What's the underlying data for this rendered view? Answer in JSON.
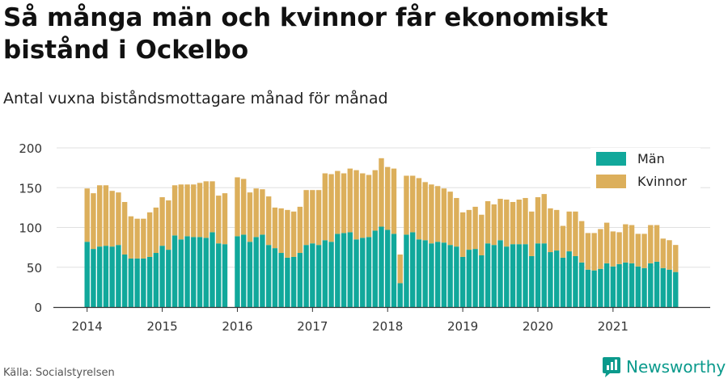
{
  "header": {
    "title": "Så många män och kvinnor får ekonomiskt bistånd i Ockelbo",
    "subtitle": "Antal vuxna biståndsmottagare månad för månad"
  },
  "footer": {
    "source": "Källa: Socialstyrelsen",
    "brand": "Newsworthy"
  },
  "colors": {
    "men": "#11a89b",
    "women": "#dcaf5b",
    "grid": "#e0e0e0",
    "axis": "#333333",
    "brand": "#0a9a8c"
  },
  "chart_data": {
    "type": "bar",
    "stacked": true,
    "title": "",
    "xlabel": "",
    "ylabel": "",
    "ylim": [
      0,
      200
    ],
    "y_ticks": [
      0,
      50,
      100,
      150,
      200
    ],
    "x_ticks": [
      "2014",
      "2015",
      "2016",
      "2017",
      "2018",
      "2019",
      "2020",
      "2021"
    ],
    "grid": true,
    "legend_position": "top-right",
    "start_month": "2014-01",
    "series": [
      {
        "name": "Män",
        "values": [
          82,
          73,
          76,
          77,
          76,
          78,
          66,
          61,
          61,
          61,
          63,
          68,
          77,
          72,
          90,
          85,
          89,
          88,
          88,
          87,
          94,
          80,
          79,
          null,
          89,
          91,
          82,
          88,
          91,
          78,
          74,
          68,
          62,
          63,
          68,
          78,
          80,
          78,
          84,
          82,
          92,
          93,
          94,
          85,
          87,
          88,
          96,
          101,
          97,
          92,
          30,
          91,
          94,
          85,
          84,
          80,
          82,
          81,
          78,
          76,
          63,
          72,
          73,
          65,
          80,
          78,
          84,
          76,
          79,
          79,
          79,
          64,
          80,
          80,
          69,
          71,
          62,
          70,
          64,
          56,
          47,
          46,
          48,
          55,
          51,
          54,
          56,
          55,
          51,
          49,
          55,
          57,
          49,
          47,
          44
        ]
      },
      {
        "name": "Kvinnor",
        "values": [
          67,
          70,
          77,
          76,
          70,
          66,
          66,
          53,
          50,
          50,
          56,
          57,
          61,
          62,
          63,
          69,
          65,
          66,
          68,
          71,
          64,
          60,
          64,
          null,
          74,
          70,
          62,
          61,
          57,
          61,
          51,
          56,
          60,
          57,
          58,
          69,
          67,
          69,
          84,
          85,
          79,
          75,
          80,
          87,
          81,
          78,
          76,
          86,
          79,
          82,
          36,
          74,
          71,
          77,
          73,
          74,
          70,
          68,
          67,
          61,
          56,
          50,
          53,
          51,
          53,
          51,
          52,
          59,
          53,
          56,
          58,
          56,
          58,
          62,
          55,
          51,
          40,
          50,
          56,
          52,
          46,
          47,
          50,
          51,
          44,
          40,
          48,
          48,
          41,
          43,
          48,
          46,
          37,
          37,
          34
        ]
      }
    ]
  }
}
